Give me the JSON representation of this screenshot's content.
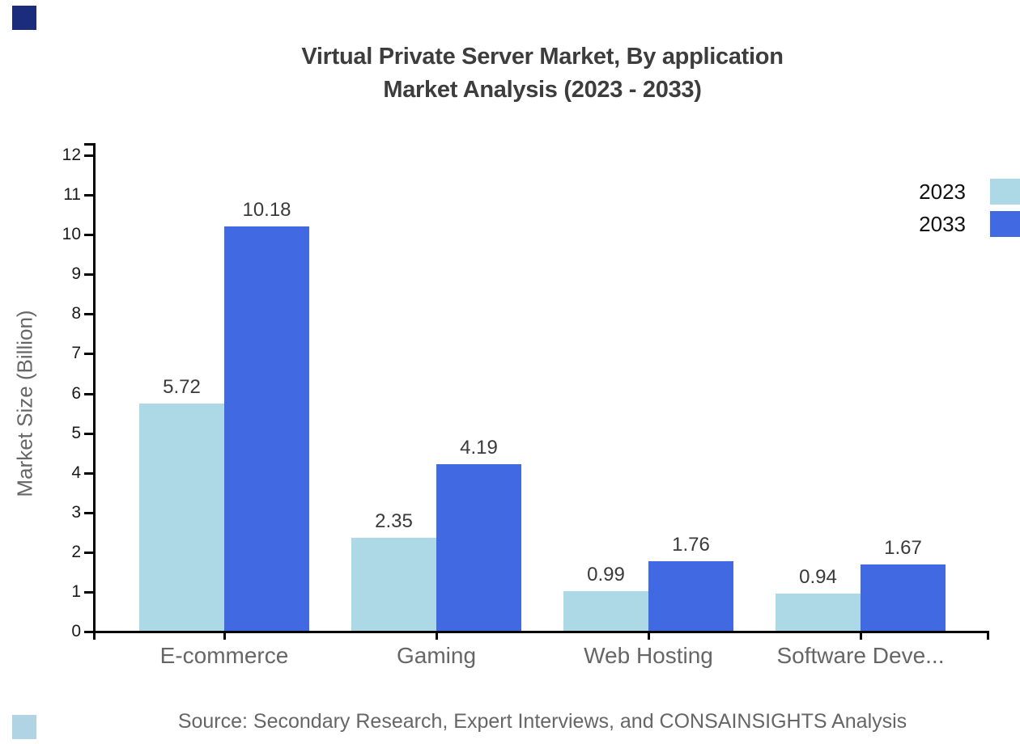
{
  "title": {
    "line1": "Virtual Private Server Market, By application",
    "line2": "Market Analysis (2023 - 2033)"
  },
  "chart_data": {
    "type": "bar",
    "categories": [
      "E-commerce",
      "Gaming",
      "Web Hosting",
      "Software Deve..."
    ],
    "series": [
      {
        "name": "2023",
        "color": "#ADD8E6",
        "values": [
          5.72,
          2.35,
          0.99,
          0.94
        ]
      },
      {
        "name": "2033",
        "color": "#4169E1",
        "values": [
          10.18,
          4.19,
          1.76,
          1.67
        ]
      }
    ],
    "ylabel": "Market Size (Billion)",
    "xlabel": "",
    "ylim": [
      0,
      12
    ],
    "yticks": [
      0,
      1,
      2,
      3,
      4,
      5,
      6,
      7,
      8,
      9,
      10,
      11,
      12
    ],
    "grid": false,
    "legend_position": "top-right",
    "value_labels": true
  },
  "source": "Source: Secondary Research, Expert Interviews, and CONSAINSIGHTS Analysis",
  "accents": {
    "top_left_color": "#1B2C7D",
    "bottom_left_color": "#B0D4E4"
  }
}
